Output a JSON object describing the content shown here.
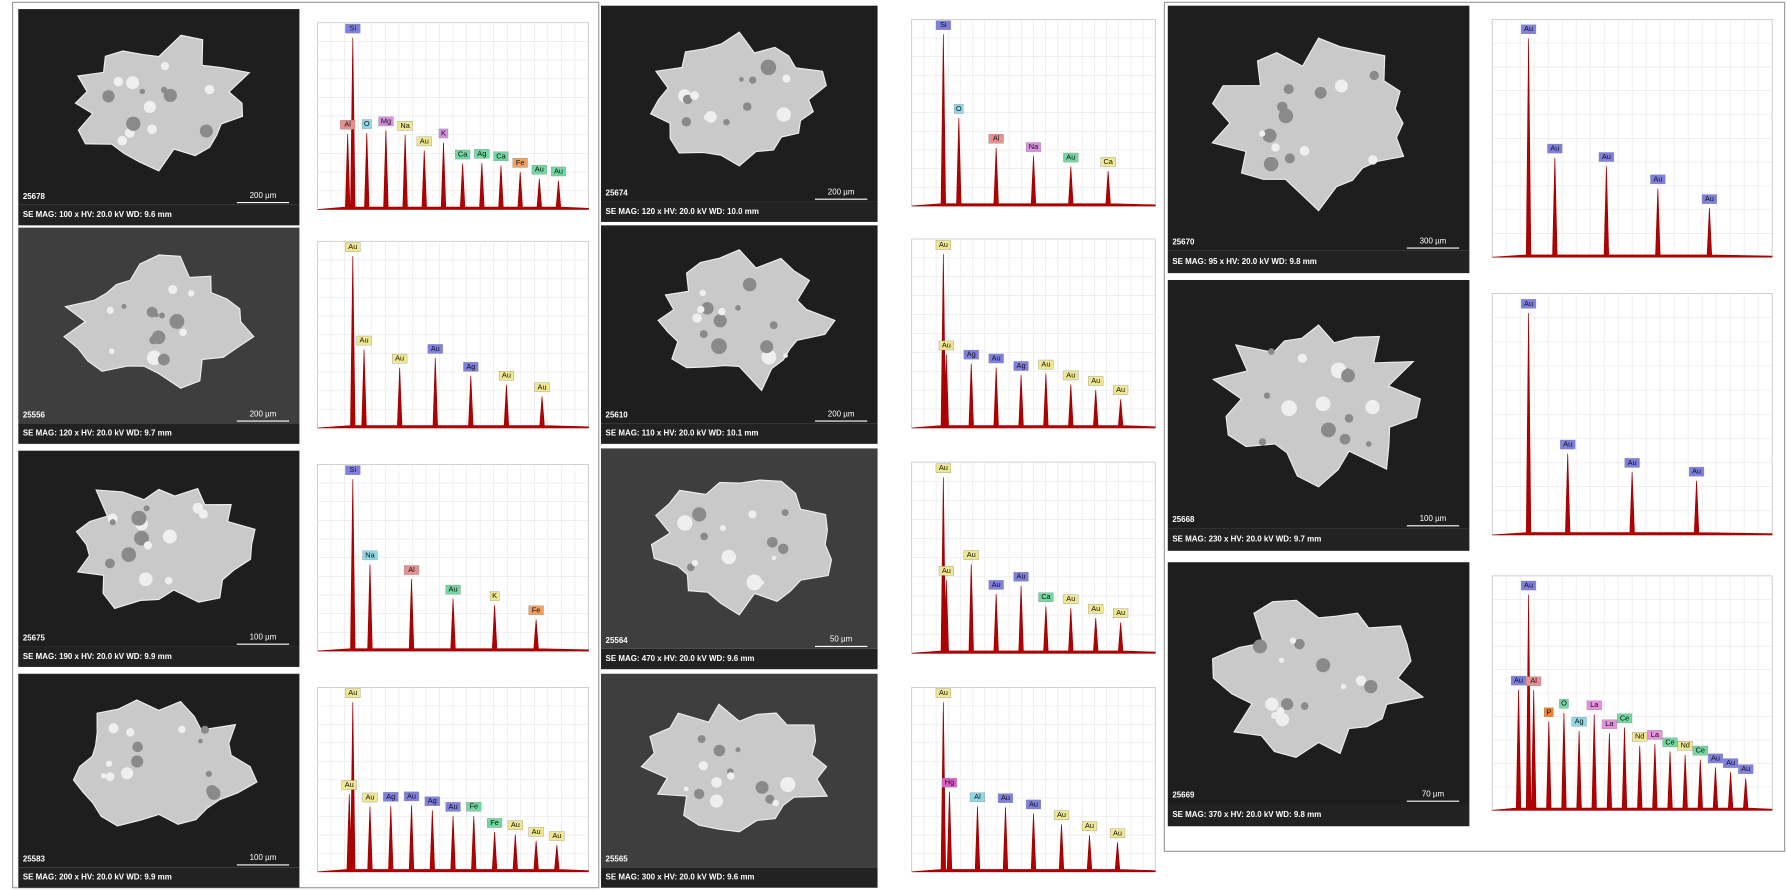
{
  "panels": [
    {
      "id": "25678",
      "caption": "SE  MAG: 100 x  HV: 20.0 kV  WD: 9.6 mm",
      "scale": "200 µm",
      "peaks": [
        {
          "label": "Si",
          "color": "#7f7fe0"
        },
        {
          "label": "Al",
          "color": "#e89090"
        },
        {
          "label": "O",
          "color": "#8fd8e8"
        },
        {
          "label": "Mg",
          "color": "#d890e0"
        },
        {
          "label": "Na",
          "color": "#f0e890"
        },
        {
          "label": "Au",
          "color": "#f0e890"
        },
        {
          "label": "K",
          "color": "#d890e0"
        },
        {
          "label": "Ca",
          "color": "#70d8a0"
        },
        {
          "label": "Ag",
          "color": "#70d8a0"
        },
        {
          "label": "Ca",
          "color": "#70d8a0"
        },
        {
          "label": "Fe",
          "color": "#f0a060"
        },
        {
          "label": "Au",
          "color": "#70d8a0"
        },
        {
          "label": "Au",
          "color": "#70d8a0"
        }
      ]
    },
    {
      "id": "25556",
      "caption": "SE  MAG: 120 x  HV: 20.0 kV  WD: 9.7 mm",
      "scale": "200 µm",
      "peaks": [
        {
          "label": "Au",
          "color": "#f0e890"
        },
        {
          "label": "Au",
          "color": "#f0e890"
        },
        {
          "label": "Au",
          "color": "#f0e890"
        },
        {
          "label": "Au",
          "color": "#7f7fe0"
        },
        {
          "label": "Ag",
          "color": "#7f7fe0"
        },
        {
          "label": "Au",
          "color": "#f0e890"
        },
        {
          "label": "Au",
          "color": "#f0e890"
        }
      ]
    },
    {
      "id": "25675",
      "caption": "SE  MAG: 190 x  HV: 20.0 kV  WD: 9.9 mm",
      "scale": "100 µm",
      "peaks": [
        {
          "label": "Si",
          "color": "#7f7fe0"
        },
        {
          "label": "Na",
          "color": "#8fd8e8"
        },
        {
          "label": "Al",
          "color": "#e89090"
        },
        {
          "label": "Au",
          "color": "#70d8a0"
        },
        {
          "label": "K",
          "color": "#f0e890"
        },
        {
          "label": "Fe",
          "color": "#f0a060"
        }
      ]
    },
    {
      "id": "25583",
      "caption": "SE  MAG: 200 x  HV: 20.0 kV  WD: 9.9 mm",
      "scale": "100 µm",
      "peaks": [
        {
          "label": "Au",
          "color": "#f0e890"
        },
        {
          "label": "Au",
          "color": "#f0e890"
        },
        {
          "label": "Au",
          "color": "#f0e890"
        },
        {
          "label": "Ag",
          "color": "#7f7fe0"
        },
        {
          "label": "Au",
          "color": "#7f7fe0"
        },
        {
          "label": "Ag",
          "color": "#7f7fe0"
        },
        {
          "label": "Au",
          "color": "#7f7fe0"
        },
        {
          "label": "Fe",
          "color": "#70d8a0"
        },
        {
          "label": "Fe",
          "color": "#70d8a0"
        },
        {
          "label": "Au",
          "color": "#f0e890"
        },
        {
          "label": "Au",
          "color": "#f0e890"
        },
        {
          "label": "Au",
          "color": "#f0e890"
        }
      ]
    },
    {
      "id": "25674",
      "caption": "SE  MAG: 120 x  HV: 20.0 kV  WD: 10.0 mm",
      "scale": "200 µm",
      "peaks": [
        {
          "label": "Si",
          "color": "#7f7fe0"
        },
        {
          "label": "O",
          "color": "#8fd8e8"
        },
        {
          "label": "Al",
          "color": "#e89090"
        },
        {
          "label": "Na",
          "color": "#d890e0"
        },
        {
          "label": "Au",
          "color": "#70d8a0"
        },
        {
          "label": "Ca",
          "color": "#f0e890"
        }
      ]
    },
    {
      "id": "25610",
      "caption": "SE  MAG: 110 x  HV: 20.0 kV  WD: 10.1 mm",
      "scale": "200 µm",
      "peaks": [
        {
          "label": "Au",
          "color": "#f0e890"
        },
        {
          "label": "Au",
          "color": "#f0e890"
        },
        {
          "label": "Ag",
          "color": "#7f7fe0"
        },
        {
          "label": "Au",
          "color": "#7f7fe0"
        },
        {
          "label": "Ag",
          "color": "#7f7fe0"
        },
        {
          "label": "Au",
          "color": "#f0e890"
        },
        {
          "label": "Au",
          "color": "#f0e890"
        },
        {
          "label": "Au",
          "color": "#f0e890"
        },
        {
          "label": "Au",
          "color": "#f0e890"
        }
      ]
    },
    {
      "id": "25564",
      "caption": "SE  MAG: 470 x  HV: 20.0 kV  WD: 9.6 mm",
      "scale": "50 µm",
      "peaks": [
        {
          "label": "Au",
          "color": "#f0e890"
        },
        {
          "label": "Au",
          "color": "#f0e890"
        },
        {
          "label": "Au",
          "color": "#f0e890"
        },
        {
          "label": "Au",
          "color": "#7f7fe0"
        },
        {
          "label": "Au",
          "color": "#7f7fe0"
        },
        {
          "label": "Ca",
          "color": "#70d8a0"
        },
        {
          "label": "Au",
          "color": "#f0e890"
        },
        {
          "label": "Au",
          "color": "#f0e890"
        },
        {
          "label": "Au",
          "color": "#f0e890"
        }
      ]
    },
    {
      "id": "25565",
      "caption": "SE  MAG: 300 x  HV: 20.0 kV  WD: 9.6 mm",
      "peaks": [
        {
          "label": "Au",
          "color": "#f0e890"
        },
        {
          "label": "Hg",
          "color": "#e060d0"
        },
        {
          "label": "Al",
          "color": "#8fd8e8"
        },
        {
          "label": "Au",
          "color": "#7f7fe0"
        },
        {
          "label": "Au",
          "color": "#7f7fe0"
        },
        {
          "label": "Au",
          "color": "#f0e890"
        },
        {
          "label": "Au",
          "color": "#f0e890"
        },
        {
          "label": "Au",
          "color": "#f0e890"
        }
      ]
    },
    {
      "id": "25670",
      "caption": "SE  MAG: 95 x  HV: 20.0 kV  WD: 9.8 mm",
      "scale": "300 µm",
      "peaks": [
        {
          "label": "Au",
          "color": "#7f7fe0"
        },
        {
          "label": "Au",
          "color": "#7f7fe0"
        },
        {
          "label": "Au",
          "color": "#7f7fe0"
        },
        {
          "label": "Au",
          "color": "#7f7fe0"
        },
        {
          "label": "Au",
          "color": "#7f7fe0"
        }
      ]
    },
    {
      "id": "25668",
      "caption": "SE  MAG: 230 x  HV: 20.0 kV  WD: 9.7 mm",
      "scale": "100 µm",
      "peaks": [
        {
          "label": "Au",
          "color": "#7f7fe0"
        },
        {
          "label": "Au",
          "color": "#7f7fe0"
        },
        {
          "label": "Au",
          "color": "#7f7fe0"
        },
        {
          "label": "Au",
          "color": "#7f7fe0"
        }
      ]
    },
    {
      "id": "25669",
      "caption": "SE  MAG: 370 x  HV: 20.0 kV  WD: 9.8 mm",
      "scale": "70 µm",
      "peaks": [
        {
          "label": "Au",
          "color": "#7f7fe0"
        },
        {
          "label": "Au",
          "color": "#7f7fe0"
        },
        {
          "label": "Al",
          "color": "#e89090"
        },
        {
          "label": "P",
          "color": "#f08030"
        },
        {
          "label": "O",
          "color": "#70d8a0"
        },
        {
          "label": "Ag",
          "color": "#8fd8e8"
        },
        {
          "label": "La",
          "color": "#e890e0"
        },
        {
          "label": "La",
          "color": "#e890e0"
        },
        {
          "label": "Ce",
          "color": "#70d8a0"
        },
        {
          "label": "Nd",
          "color": "#f0e890"
        },
        {
          "label": "La",
          "color": "#e890e0"
        },
        {
          "label": "Ce",
          "color": "#70d8a0"
        },
        {
          "label": "Nd",
          "color": "#f0e890"
        },
        {
          "label": "Ce",
          "color": "#70d8a0"
        },
        {
          "label": "Au",
          "color": "#7f7fe0"
        },
        {
          "label": "Au",
          "color": "#7f7fe0"
        },
        {
          "label": "Au",
          "color": "#7f7fe0"
        }
      ]
    }
  ]
}
